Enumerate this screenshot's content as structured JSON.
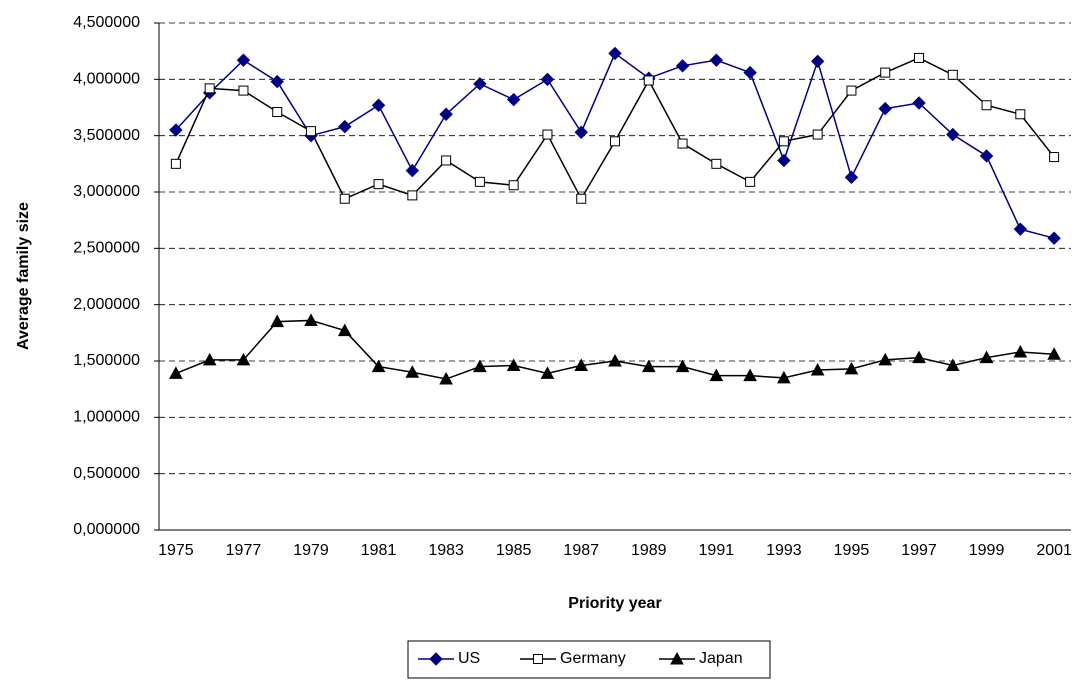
{
  "chart_data": {
    "type": "line",
    "x_label": "Priority year",
    "y_label": "Average family size",
    "categories": [
      "1975",
      null,
      "1977",
      null,
      "1979",
      null,
      "1981",
      null,
      "1983",
      null,
      "1985",
      null,
      "1987",
      null,
      "1989",
      null,
      "1991",
      null,
      "1993",
      null,
      "1995",
      null,
      "1997",
      null,
      "1999",
      null,
      "2001"
    ],
    "ylim": [
      0,
      4.5
    ],
    "yticks": [
      {
        "value": 0,
        "label": "0,000000"
      },
      {
        "value": 0.5,
        "label": "0,500000"
      },
      {
        "value": 1,
        "label": "1,000000"
      },
      {
        "value": 1.5,
        "label": "1,500000"
      },
      {
        "value": 2,
        "label": "2,000000"
      },
      {
        "value": 2.5,
        "label": "2,500000"
      },
      {
        "value": 3,
        "label": "3,000000"
      },
      {
        "value": 3.5,
        "label": "3,500000"
      },
      {
        "value": 4,
        "label": "4,000000"
      },
      {
        "value": 4.5,
        "label": "4,500000"
      }
    ],
    "grid": true,
    "legend": "bottom",
    "series": [
      {
        "name": "US",
        "color": "#000080",
        "marker": "diamond",
        "values": [
          3.55,
          3.88,
          4.17,
          3.98,
          3.5,
          3.58,
          3.77,
          3.19,
          3.69,
          3.96,
          3.82,
          4.0,
          3.53,
          4.23,
          4.01,
          4.12,
          4.17,
          4.06,
          3.28,
          4.16,
          3.13,
          3.74,
          3.79,
          3.51,
          3.32,
          2.67,
          2.59
        ]
      },
      {
        "name": "Germany",
        "color": "#000000",
        "marker": "square",
        "values": [
          3.25,
          3.92,
          3.9,
          3.71,
          3.54,
          2.94,
          3.07,
          2.97,
          3.28,
          3.09,
          3.06,
          3.51,
          2.94,
          3.45,
          3.99,
          3.43,
          3.25,
          3.09,
          3.45,
          3.51,
          3.9,
          4.06,
          4.19,
          4.04,
          3.77,
          3.69,
          3.31
        ]
      },
      {
        "name": "Japan",
        "color": "#000000",
        "marker": "triangle",
        "values": [
          1.39,
          1.51,
          1.51,
          1.85,
          1.86,
          1.77,
          1.45,
          1.4,
          1.34,
          1.45,
          1.46,
          1.39,
          1.46,
          1.5,
          1.45,
          1.45,
          1.37,
          1.37,
          1.35,
          1.42,
          1.43,
          1.51,
          1.53,
          1.46,
          1.53,
          1.58,
          1.56
        ]
      }
    ]
  }
}
